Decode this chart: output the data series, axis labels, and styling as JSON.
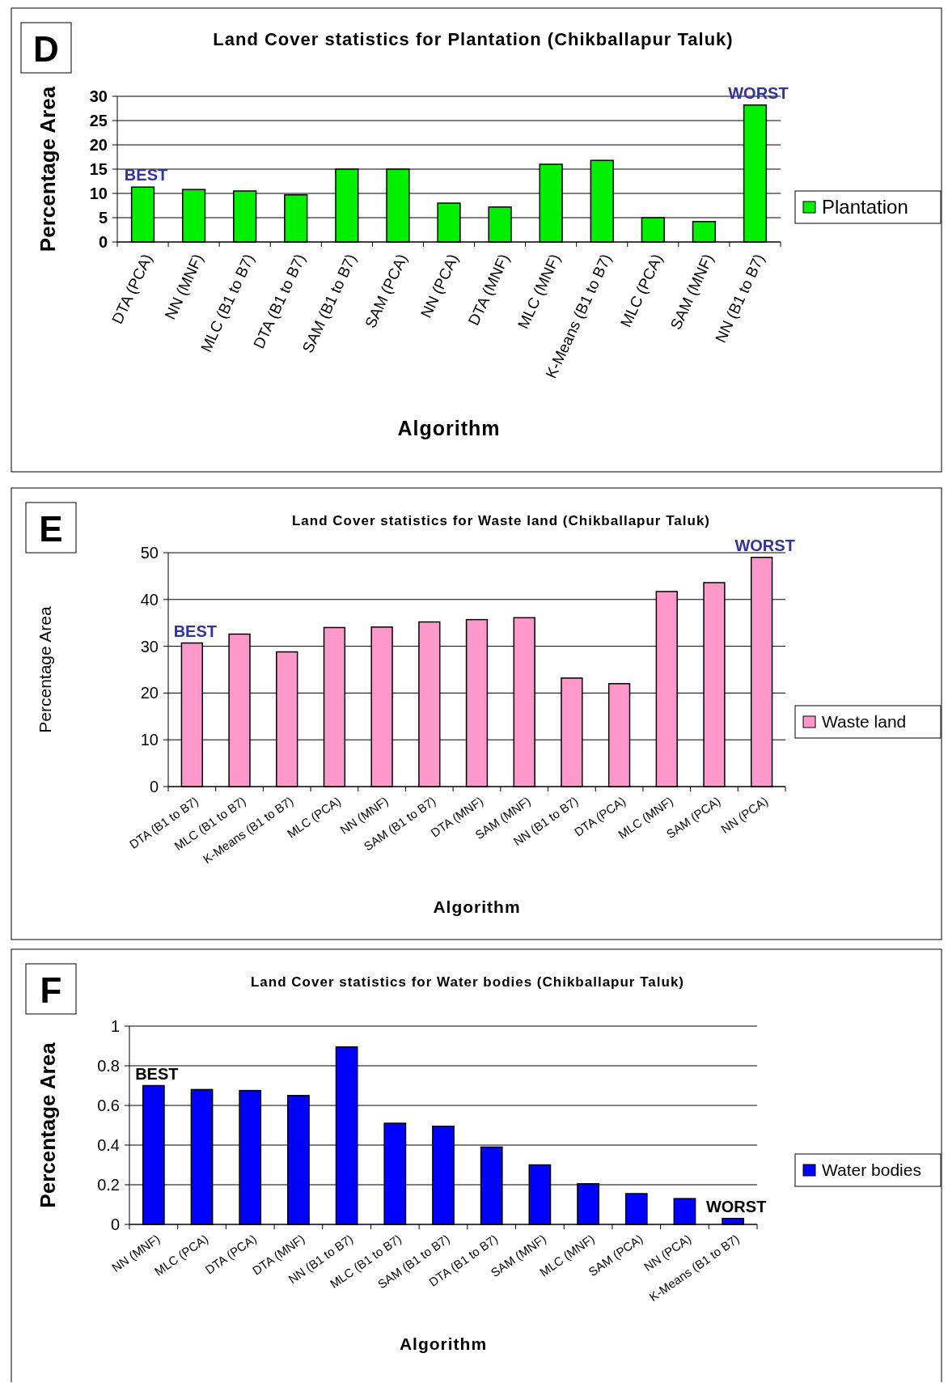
{
  "chart_data": [
    {
      "type": "bar",
      "title": "Land Cover statistics for Plantation (Chikballapur Taluk)",
      "xlabel": "Algorithm",
      "ylabel": "Percentage Area",
      "categories": [
        "DTA (PCA)",
        "NN (MNF)",
        "MLC (B1 to B7)",
        "DTA (B1 to B7)",
        "SAM (B1 to B7)",
        "SAM (PCA)",
        "NN (PCA)",
        "DTA (MNF)",
        "MLC (MNF)",
        "K-Means (B1 to B7)",
        "MLC (PCA)",
        "SAM (MNF)",
        "NN (B1 to B7)"
      ],
      "series": [
        {
          "name": "Plantation",
          "color": "#00ee00",
          "values": [
            11.3,
            10.8,
            10.5,
            9.7,
            15,
            15,
            8,
            7.2,
            16,
            16.8,
            5,
            4.2,
            28.2
          ]
        }
      ],
      "ylim": [
        0,
        30
      ],
      "yticks": [
        0,
        5,
        10,
        15,
        20,
        25,
        30
      ],
      "grid": "y",
      "legend": "right",
      "annotations": [
        "D",
        {
          "text": "BEST",
          "x": "DTA (PCA)",
          "y": 11.3
        },
        {
          "text": "WORST",
          "x": "NN (B1 to B7)",
          "y": 28.2
        }
      ]
    },
    {
      "type": "bar",
      "title": "Land Cover statistics for Waste land (Chikballapur Taluk)",
      "xlabel": "Algorithm",
      "ylabel": "Percentage Area",
      "categories": [
        "DTA (B1 to B7)",
        "MLC (B1 to B7)",
        "K-Means (B1 to B7)",
        "MLC (PCA)",
        "NN (MNF)",
        "SAM (B1 to B7)",
        "DTA (MNF)",
        "SAM (MNF)",
        "NN (B1 to B7)",
        "DTA (PCA)",
        "MLC (MNF)",
        "SAM (PCA)",
        "NN (PCA)"
      ],
      "series": [
        {
          "name": "Waste land",
          "color": "#ff99cc",
          "values": [
            30.7,
            32.6,
            28.8,
            34,
            34.1,
            35.2,
            35.7,
            36.1,
            23.2,
            22,
            41.7,
            43.6,
            49
          ]
        }
      ],
      "ylim": [
        0,
        50
      ],
      "yticks": [
        0,
        10,
        20,
        30,
        40,
        50
      ],
      "grid": "y",
      "legend": "right",
      "annotations": [
        "E",
        {
          "text": "BEST",
          "x": "DTA (B1 to B7)",
          "y": 30.7
        },
        {
          "text": "WORST",
          "x": "NN (PCA)",
          "y": 49
        }
      ]
    },
    {
      "type": "bar",
      "title": "Land Cover statistics for Water bodies (Chikballapur Taluk)",
      "xlabel": "Algorithm",
      "ylabel": "Percentage Area",
      "categories": [
        "NN (MNF)",
        "MLC (PCA)",
        "DTA (PCA)",
        "DTA (MNF)",
        "NN (B1 to B7)",
        "MLC (B1 to B7)",
        "SAM (B1 to B7)",
        "DTA (B1 to B7)",
        "SAM (MNF)",
        "MLC (MNF)",
        "SAM (PCA)",
        "NN (PCA)",
        "K-Means (B1 to B7)"
      ],
      "series": [
        {
          "name": "Water bodies",
          "color": "#0000ff",
          "values": [
            0.7,
            0.68,
            0.675,
            0.65,
            0.895,
            0.51,
            0.495,
            0.39,
            0.3,
            0.205,
            0.155,
            0.13,
            0.03
          ]
        }
      ],
      "ylim": [
        0,
        1
      ],
      "yticks": [
        0,
        0.2,
        0.4,
        0.6,
        0.8,
        1
      ],
      "grid": "y",
      "legend": "right",
      "annotations": [
        "F",
        {
          "text": "BEST",
          "x": "NN (MNF)",
          "y": 0.7
        },
        {
          "text": "WORST",
          "x": "K-Means (B1 to B7)",
          "y": 0.03
        }
      ]
    }
  ]
}
